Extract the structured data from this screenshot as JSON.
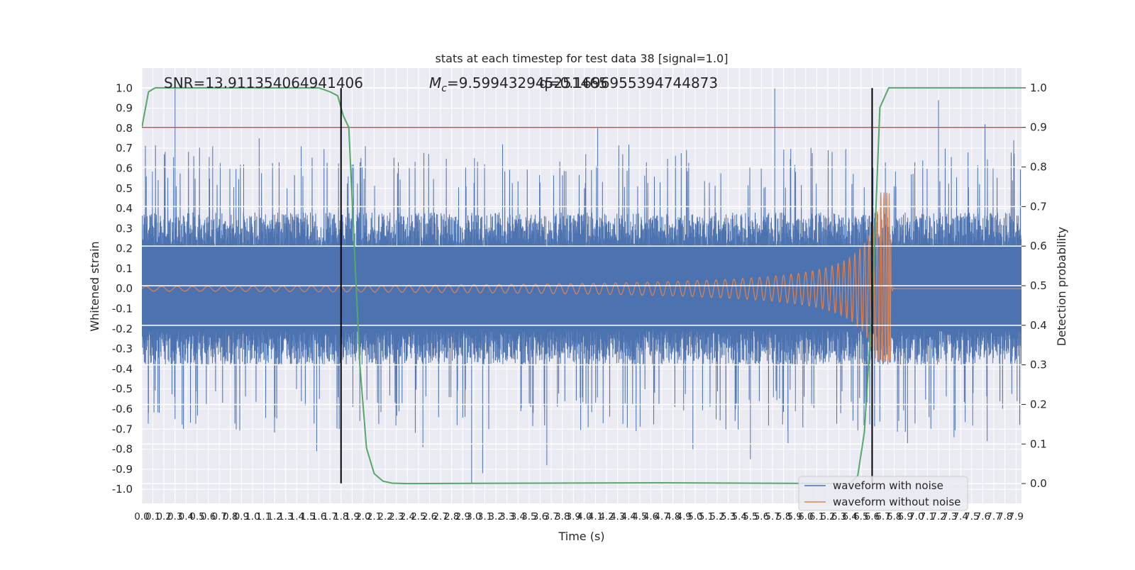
{
  "chart_data": {
    "type": "line",
    "title": "stats at each timestep for test data 38 [signal=1.0]",
    "xlabel": "Time (s)",
    "ylabel_left": "Whitened strain",
    "ylabel_right": "Detection probability",
    "xlim": [
      0.0,
      7.95
    ],
    "ylim_left": [
      -1.07,
      1.1
    ],
    "ylim_right": [
      -0.05,
      1.05
    ],
    "x_ticks": [
      "0.0",
      "0.1",
      "0.2",
      "0.3",
      "0.4",
      "0.5",
      "0.6",
      "0.7",
      "0.8",
      "0.9",
      "1.0",
      "1.1",
      "1.2",
      "1.3",
      "1.4",
      "1.5",
      "1.6",
      "1.7",
      "1.8",
      "1.9",
      "2.0",
      "2.1",
      "2.2",
      "2.3",
      "2.4",
      "2.5",
      "2.6",
      "2.7",
      "2.8",
      "2.9",
      "3.0",
      "3.1",
      "3.2",
      "3.3",
      "3.4",
      "3.5",
      "3.6",
      "3.7",
      "3.8",
      "3.9",
      "4.0",
      "4.1",
      "4.2",
      "4.3",
      "4.4",
      "4.5",
      "4.6",
      "4.7",
      "4.8",
      "4.9",
      "5.0",
      "5.1",
      "5.2",
      "5.3",
      "5.4",
      "5.5",
      "5.6",
      "5.7",
      "5.8",
      "5.9",
      "6.0",
      "6.1",
      "6.2",
      "6.3",
      "6.4",
      "6.5",
      "6.6",
      "6.7",
      "6.8",
      "6.9",
      "7.0",
      "7.1",
      "7.2",
      "7.3",
      "7.4",
      "7.5",
      "7.6",
      "7.7",
      "7.8",
      "7.9"
    ],
    "y_ticks_left": [
      "1.0",
      "0.9",
      "0.8",
      "0.7",
      "0.6",
      "0.5",
      "0.4",
      "0.3",
      "0.2",
      "0.1",
      "0.0",
      "-0.1",
      "-0.2",
      "-0.3",
      "-0.4",
      "-0.5",
      "-0.6",
      "-0.7",
      "-0.8",
      "-0.9",
      "-1.0"
    ],
    "y_ticks_right": [
      "1.0",
      "0.9",
      "0.8",
      "0.7",
      "0.6",
      "0.5",
      "0.4",
      "0.3",
      "0.2",
      "0.1",
      "0.0"
    ],
    "annotations": {
      "snr": "SNR=13.911354064941406",
      "mc_symbol": "M",
      "mc_sub": "c",
      "mc_value": "=9.599432945251465",
      "q_value": "q=0.1696955394744873"
    },
    "legend": {
      "position": "lower right",
      "entries": [
        {
          "label": "waveform with noise",
          "color": "#4c72b0"
        },
        {
          "label": "waveform without noise",
          "color": "#dd8452"
        }
      ]
    },
    "threshold": {
      "value": 0.9,
      "axis": "right",
      "color": "#c44e52"
    },
    "vlines": [
      {
        "x": 1.8,
        "color": "#000000"
      },
      {
        "x": 6.6,
        "color": "#000000"
      }
    ],
    "vline_ymin_left": -0.97,
    "vline_ymax_left": 1.0,
    "noisy_waveform": {
      "color": "#4c72b0",
      "envelope_amplitude": 0.38,
      "spikes": [
        {
          "x": 0.04,
          "y": 0.56
        },
        {
          "x": 0.06,
          "y": -0.62
        },
        {
          "x": 0.3,
          "y": 1.0
        },
        {
          "x": 0.3,
          "y": -0.65
        },
        {
          "x": 0.64,
          "y": 0.71
        },
        {
          "x": 0.92,
          "y": 0.62
        },
        {
          "x": 1.06,
          "y": 0.75
        },
        {
          "x": 1.24,
          "y": 0.63
        },
        {
          "x": 1.44,
          "y": 0.71
        },
        {
          "x": 1.58,
          "y": -0.81
        },
        {
          "x": 2.02,
          "y": 0.71
        },
        {
          "x": 2.54,
          "y": -0.79
        },
        {
          "x": 2.98,
          "y": -0.97
        },
        {
          "x": 3.08,
          "y": -0.92
        },
        {
          "x": 3.26,
          "y": 0.72
        },
        {
          "x": 3.66,
          "y": -0.88
        },
        {
          "x": 4.12,
          "y": 0.8
        },
        {
          "x": 4.56,
          "y": 0.63
        },
        {
          "x": 4.98,
          "y": -0.8
        },
        {
          "x": 5.5,
          "y": -0.85
        },
        {
          "x": 5.72,
          "y": 1.0
        },
        {
          "x": 5.84,
          "y": -0.77
        },
        {
          "x": 6.72,
          "y": 0.63
        },
        {
          "x": 6.92,
          "y": -0.77
        },
        {
          "x": 7.2,
          "y": 0.94
        },
        {
          "x": 7.34,
          "y": -0.74
        },
        {
          "x": 7.62,
          "y": 0.82
        },
        {
          "x": 7.64,
          "y": -0.76
        },
        {
          "x": 7.88,
          "y": 0.74
        },
        {
          "x": 7.91,
          "y": -0.56
        }
      ]
    },
    "clean_waveform": {
      "color": "#dd8452",
      "description": "chirp",
      "start_amplitude": 0.012,
      "peak_time": 6.77,
      "peak_positive": 0.48,
      "peak_negative": -0.36
    },
    "detection_probability": {
      "color": "#55a868",
      "points": [
        [
          0.0,
          0.9
        ],
        [
          0.06,
          0.99
        ],
        [
          0.12,
          1.0
        ],
        [
          1.6,
          1.0
        ],
        [
          1.7,
          0.99
        ],
        [
          1.77,
          0.98
        ],
        [
          1.82,
          0.93
        ],
        [
          1.87,
          0.9
        ],
        [
          1.92,
          0.6
        ],
        [
          1.97,
          0.3
        ],
        [
          2.03,
          0.09
        ],
        [
          2.1,
          0.025
        ],
        [
          2.18,
          0.006
        ],
        [
          2.26,
          0.001
        ],
        [
          2.4,
          0.0
        ],
        [
          4.7,
          0.002
        ],
        [
          6.4,
          0.0
        ],
        [
          6.47,
          0.02
        ],
        [
          6.53,
          0.13
        ],
        [
          6.6,
          0.45
        ],
        [
          6.67,
          0.95
        ],
        [
          6.75,
          1.0
        ],
        [
          7.95,
          1.0
        ]
      ]
    }
  }
}
